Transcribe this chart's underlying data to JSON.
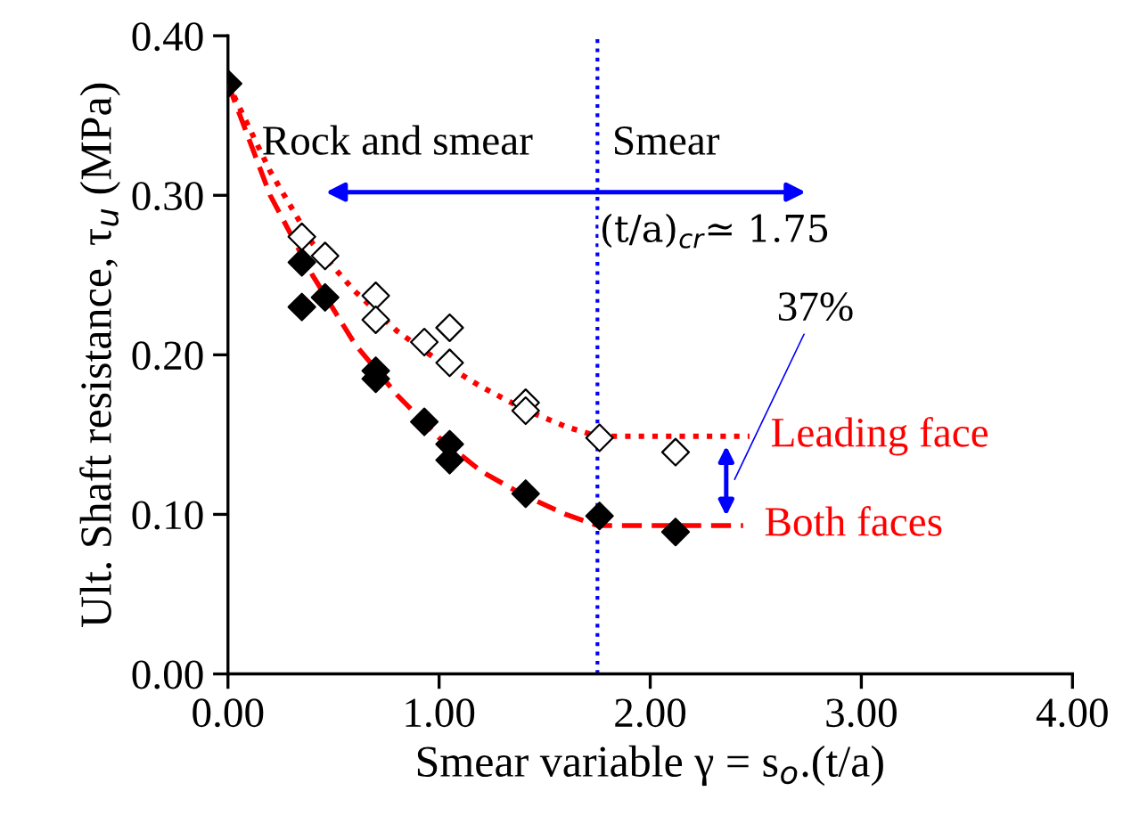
{
  "chart_data": {
    "type": "scatter",
    "xlabel": "Smear variable γ = s$_{o}$.(t/a)",
    "ylabel": "Ult. Shaft resistance, τ$_{u}$ (MPa)",
    "xlim": [
      0,
      4
    ],
    "ylim": [
      0,
      0.4
    ],
    "xticks": [
      {
        "value": 0,
        "label": "0.00"
      },
      {
        "value": 1,
        "label": "1.00"
      },
      {
        "value": 2,
        "label": "2.00"
      },
      {
        "value": 3,
        "label": "3.00"
      },
      {
        "value": 4,
        "label": "4.00"
      }
    ],
    "yticks": [
      {
        "value": 0,
        "label": "0.00"
      },
      {
        "value": 0.1,
        "label": "0.10"
      },
      {
        "value": 0.2,
        "label": "0.20"
      },
      {
        "value": 0.3,
        "label": "0.30"
      },
      {
        "value": 0.4,
        "label": "0.40"
      }
    ],
    "grid": false,
    "legend": false,
    "series": [
      {
        "marker": "diamond",
        "color": "#000000",
        "x": [
          0,
          0.35,
          0.35,
          0.46,
          0.7,
          0.7,
          0.93,
          1.05,
          1.05,
          1.41,
          1.76,
          2.12
        ],
        "values": [
          0.37,
          0.258,
          0.23,
          0.236,
          0.19,
          0.185,
          0.158,
          0.144,
          0.134,
          0.113,
          0.099,
          0.089
        ]
      },
      {
        "marker": "diamond",
        "color": "#ffffff",
        "x": [
          0.35,
          0.46,
          0.7,
          0.7,
          0.93,
          1.05,
          1.05,
          1.41,
          1.41,
          1.76,
          2.12
        ],
        "values": [
          0.274,
          0.262,
          0.237,
          0.222,
          0.208,
          0.217,
          0.195,
          0.17,
          0.165,
          0.148,
          0.139
        ]
      },
      {
        "type": "line",
        "name": "Leading face",
        "line_style": "dotted",
        "marker": "none",
        "color": "#ff0000",
        "x": [
          0,
          0.2,
          0.4,
          0.6,
          0.8,
          1.0,
          1.2,
          1.4,
          1.6,
          1.75,
          2.0,
          2.47
        ],
        "values": [
          0.37,
          0.315,
          0.27,
          0.24,
          0.215,
          0.196,
          0.18,
          0.166,
          0.155,
          0.149,
          0.149,
          0.149
        ]
      },
      {
        "type": "line",
        "name": "Both faces",
        "line_style": "dashed",
        "marker": "none",
        "color": "#ff0000",
        "x": [
          0,
          0.2,
          0.4,
          0.6,
          0.8,
          1.0,
          1.2,
          1.4,
          1.6,
          1.75,
          2.0,
          2.44
        ],
        "values": [
          0.37,
          0.3,
          0.25,
          0.207,
          0.175,
          0.148,
          0.127,
          0.112,
          0.1,
          0.093,
          0.093,
          0.093
        ]
      }
    ],
    "ref_lines": [
      {
        "axis": "x",
        "value": 1.75,
        "color": "#0000ff",
        "line_style": "dotted"
      }
    ],
    "annotations": [
      "Rock and smear",
      "Smear",
      "(t/a)$_{cr}$≃ 1.75",
      "37%"
    ]
  }
}
